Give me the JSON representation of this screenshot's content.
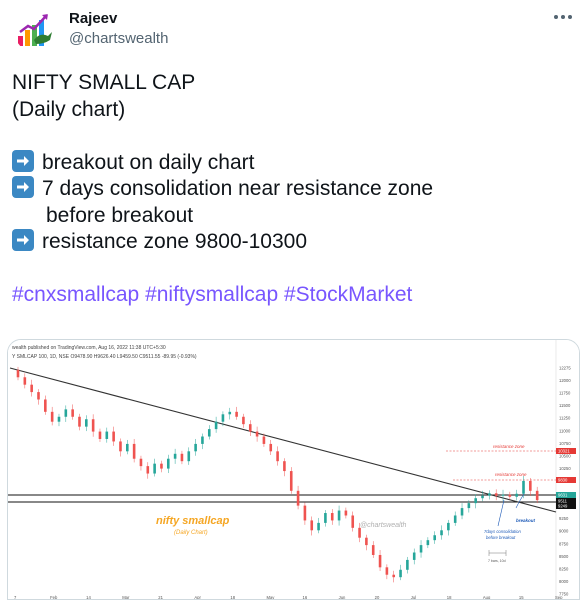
{
  "author": {
    "name": "Rajeev",
    "handle": "@chartswealth",
    "avatar_icon": "chart-bull-logo-icon"
  },
  "more_icon": "more-options-icon",
  "tweet": {
    "title": "NIFTY SMALL CAP",
    "subtitle": "(Daily chart)",
    "bullet_icon": "right-arrow-emoji-icon",
    "bullets": [
      "breakout on daily chart",
      "7 days consolidation near resistance zone",
      "before breakout",
      "resistance zone 9800-10300"
    ],
    "hashtags": [
      "#cnxsmallcap",
      "#niftysmallcap",
      "#StockMarket"
    ]
  },
  "chart": {
    "header": "wealth published on TradingView.com, Aug 16, 2022 11:38 UTC+5:30",
    "instrument_line": "Y SMLCAP 100, 1D, NSE  O9478.90 H9626.40 L9459.50 C9511.55 -89.95 (-0.93%)",
    "chart_title": "nifty smallcap",
    "chart_subtitle": "(Daily Chart)",
    "watermark": "@chartswealth",
    "resistance_label_1": "resistance zone",
    "resistance_label_2": "resistance zone",
    "breakout_label": "breakout",
    "consolidation_label_1": "7days consolidation",
    "consolidation_label_2": "before breakout",
    "bars_label": "7 bars, 10d",
    "x_ticks": [
      "7",
      "Feb",
      "14",
      "Mar",
      "21",
      "Apr",
      "18",
      "May",
      "16",
      "Jun",
      "20",
      "Jul",
      "18",
      "Aug",
      "15",
      "Sep"
    ],
    "y_ticks": [
      "12275",
      "12000",
      "11750",
      "11500",
      "11250",
      "11000",
      "10750",
      "10500",
      "10250",
      "10000",
      "9750",
      "9500",
      "9250",
      "9000",
      "8750",
      "8500",
      "8250",
      "8000",
      "7750"
    ],
    "price_tags": [
      "10321",
      "9830",
      "9631",
      "9511",
      "9249"
    ],
    "colors": {
      "up": "#26a69a",
      "down": "#ef5350",
      "trendline": "#333333",
      "title_orange": "#f5a623",
      "annotation_blue": "#1e5bb8",
      "resistance_red": "#e53935"
    }
  },
  "chart_data": {
    "type": "candlestick",
    "title": "nifty smallcap",
    "subtitle": "(Daily Chart)",
    "ylim": [
      7650,
      12350
    ],
    "series": [
      {
        "name": "Y SMLCAP 100, 1D, NSE",
        "values": [
          12000,
          11850,
          11700,
          11550,
          11300,
          11100,
          11200,
          11350,
          11200,
          11000,
          11150,
          10900,
          10750,
          10900,
          10700,
          10500,
          10650,
          10350,
          10200,
          10050,
          10250,
          10150,
          10350,
          10450,
          10300,
          10500,
          10650,
          10800,
          10950,
          11100,
          11250,
          11300,
          11200,
          11050,
          10900,
          10800,
          10650,
          10500,
          10300,
          10100,
          9700,
          9400,
          9100,
          8900,
          9050,
          9250,
          9100,
          9300,
          9200,
          8950,
          8750,
          8600,
          8400,
          8150,
          8000,
          7950,
          8100,
          8300,
          8450,
          8600,
          8700,
          8800,
          8900,
          9050,
          9200,
          9350,
          9450,
          9550,
          9600,
          9650,
          9600,
          9620,
          9580,
          9640,
          9900,
          9700,
          9511
        ]
      }
    ],
    "resistance_zone": [
      9800,
      10300
    ]
  }
}
